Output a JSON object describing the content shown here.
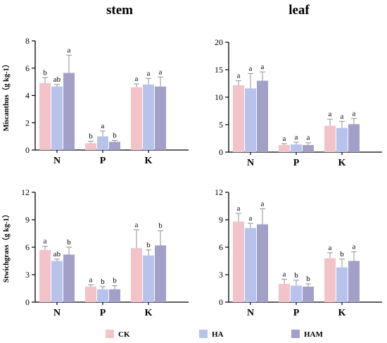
{
  "column_titles": [
    "stem",
    "leaf"
  ],
  "row_labels": [
    "Miscanthus（g kg-1）",
    "Stwichgrass（g kg-1）"
  ],
  "legend": [
    {
      "label": "CK",
      "color": "#f2c4c9"
    },
    {
      "label": "HA",
      "color": "#b7c3ea"
    },
    {
      "label": "HAM",
      "color": "#a29fc9"
    }
  ],
  "chart_data": [
    {
      "type": "bar",
      "title": "stem",
      "ylabel": "Miscanthus（g kg-1）",
      "categories": [
        "N",
        "P",
        "K"
      ],
      "ylim": [
        0,
        8
      ],
      "yticks": [
        0,
        2,
        4,
        6,
        8
      ],
      "series": [
        {
          "name": "CK",
          "values": [
            4.9,
            0.5,
            4.6
          ],
          "errors": [
            0.4,
            0.15,
            0.25
          ],
          "labels": [
            "b",
            "b",
            "a"
          ]
        },
        {
          "name": "HA",
          "values": [
            4.65,
            1.0,
            4.8
          ],
          "errors": [
            0.15,
            0.4,
            0.45
          ],
          "labels": [
            "ab",
            "a",
            "a"
          ]
        },
        {
          "name": "HAM",
          "values": [
            5.65,
            0.6,
            4.65
          ],
          "errors": [
            1.3,
            0.1,
            0.7
          ],
          "labels": [
            "a",
            "b",
            "a"
          ]
        }
      ]
    },
    {
      "type": "bar",
      "title": "leaf",
      "ylabel": "",
      "categories": [
        "N",
        "P",
        "K"
      ],
      "ylim": [
        0,
        20
      ],
      "yticks": [
        0,
        5,
        10,
        15,
        20
      ],
      "series": [
        {
          "name": "CK",
          "values": [
            12.2,
            1.3,
            4.8
          ],
          "errors": [
            0.8,
            0.25,
            1.2
          ],
          "labels": [
            "a",
            "a",
            "a"
          ]
        },
        {
          "name": "HA",
          "values": [
            11.6,
            1.4,
            4.4
          ],
          "errors": [
            2.7,
            0.4,
            1.2
          ],
          "labels": [
            "a",
            "a",
            "a"
          ]
        },
        {
          "name": "HAM",
          "values": [
            13.0,
            1.3,
            5.1
          ],
          "errors": [
            1.6,
            0.4,
            1.0
          ],
          "labels": [
            "a",
            "a",
            "a"
          ]
        }
      ]
    },
    {
      "type": "bar",
      "title": "",
      "ylabel": "Stwichgrass（g kg-1）",
      "categories": [
        "N",
        "P",
        "K"
      ],
      "ylim": [
        0,
        12
      ],
      "yticks": [
        0,
        3,
        6,
        9,
        12
      ],
      "series": [
        {
          "name": "CK",
          "values": [
            5.7,
            1.7,
            5.9
          ],
          "errors": [
            0.4,
            0.2,
            2.0
          ],
          "labels": [
            "a",
            "a",
            "a"
          ]
        },
        {
          "name": "HA",
          "values": [
            4.5,
            1.4,
            5.1
          ],
          "errors": [
            0.2,
            0.3,
            0.6
          ],
          "labels": [
            "ab",
            "b",
            "b"
          ]
        },
        {
          "name": "HAM",
          "values": [
            5.2,
            1.4,
            6.2
          ],
          "errors": [
            0.8,
            0.4,
            1.6
          ],
          "labels": [
            "b",
            "b",
            "b"
          ]
        }
      ]
    },
    {
      "type": "bar",
      "title": "",
      "ylabel": "",
      "categories": [
        "N",
        "P",
        "K"
      ],
      "ylim": [
        0,
        12
      ],
      "yticks": [
        0,
        3,
        6,
        9,
        12
      ],
      "series": [
        {
          "name": "CK",
          "values": [
            8.8,
            2.0,
            4.8
          ],
          "errors": [
            0.9,
            0.5,
            0.6
          ],
          "labels": [
            "a",
            "a",
            "a"
          ]
        },
        {
          "name": "HA",
          "values": [
            8.1,
            1.8,
            3.8
          ],
          "errors": [
            0.5,
            0.6,
            0.9
          ],
          "labels": [
            "a",
            "b",
            "b"
          ]
        },
        {
          "name": "HAM",
          "values": [
            8.5,
            1.7,
            4.5
          ],
          "errors": [
            1.7,
            0.3,
            1.0
          ],
          "labels": [
            "a",
            "b",
            "a"
          ]
        }
      ]
    }
  ]
}
